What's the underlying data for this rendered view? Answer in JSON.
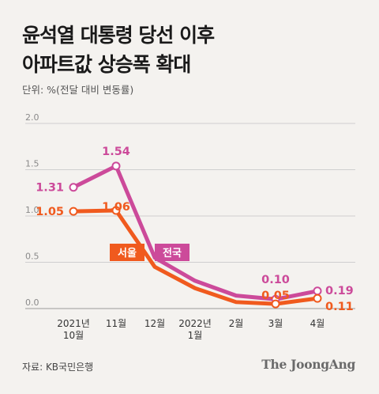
{
  "title_line1": "윤석열 대통령 당선 이후",
  "title_line2": "아파트값 상승폭 확대",
  "unit_label": "단위: %(전달 대비 변동률)",
  "source": "자료: KB국민은행",
  "brand": "The JoongAng",
  "chart_data": {
    "type": "line",
    "categories": [
      "2021년 10월",
      "11월",
      "12월",
      "2022년 1월",
      "2월",
      "3월",
      "4월"
    ],
    "x_tick_lines": [
      [
        "2021년",
        "10월"
      ],
      [
        "11월"
      ],
      [
        "12월"
      ],
      [
        "2022년",
        "1월"
      ],
      [
        "2월"
      ],
      [
        "3월"
      ],
      [
        "4월"
      ]
    ],
    "ylim": [
      0,
      2.0
    ],
    "yticks": [
      "0.0",
      "0.5",
      "1.0",
      "1.5",
      "2.0"
    ],
    "grid": true,
    "series": [
      {
        "name": "전국",
        "color": "#cc4a9a",
        "values": [
          1.31,
          1.54,
          0.55,
          0.3,
          0.14,
          0.1,
          0.19
        ],
        "labels": [
          "1.31",
          "1.54",
          "",
          "",
          "",
          "0.10",
          "0.19"
        ]
      },
      {
        "name": "서울",
        "color": "#f05a1e",
        "values": [
          1.05,
          1.06,
          0.45,
          0.22,
          0.07,
          0.05,
          0.11
        ],
        "labels": [
          "1.05",
          "1.06",
          "",
          "",
          "",
          "0.05",
          "0.11"
        ]
      }
    ]
  }
}
